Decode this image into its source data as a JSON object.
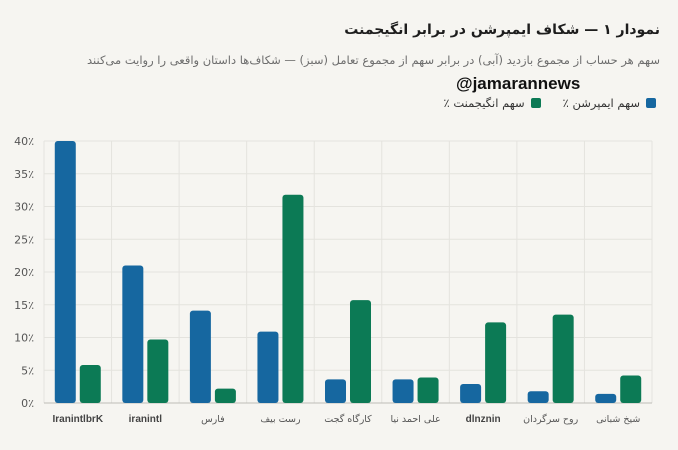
{
  "header": {
    "title": "نمودار ۱ — شکاف ایمپرشن در برابر انگیجمنت",
    "subtitle": "سهم هر حساب از مجموع بازدید (آبی) در برابر سهم از مجموع تعامل (سبز) — شکاف‌ها داستان واقعی را روایت می‌کنند",
    "watermark": "@jamarannews"
  },
  "colors": {
    "impression": "#1667a0",
    "engagement": "#0c7a55",
    "grid": "#e4e3de",
    "axis": "#bdbdb8"
  },
  "chart_data": {
    "type": "bar",
    "categories": [
      "IranintlbrK",
      "iranintl",
      "فارس",
      "رست بیف",
      "کارگاه گجت",
      "علی احمد نیا",
      "dlnznin",
      "روح سرگردان",
      "شیخ شبانی"
    ],
    "series": [
      {
        "name": "سهم ایمپرشن ٪",
        "values": [
          40,
          21,
          14.1,
          10.9,
          3.6,
          3.6,
          2.9,
          1.8,
          1.4
        ]
      },
      {
        "name": "سهم انگیجمنت ٪",
        "values": [
          5.8,
          9.7,
          2.2,
          31.8,
          15.7,
          3.9,
          12.3,
          13.5,
          4.2
        ]
      }
    ],
    "ylim": [
      0,
      40
    ],
    "yticks": [
      "0٪",
      "5٪",
      "10٪",
      "15٪",
      "20٪",
      "25٪",
      "30٪",
      "35٪",
      "40٪"
    ],
    "ytick_values": [
      0,
      5,
      10,
      15,
      20,
      25,
      30,
      35,
      40
    ],
    "grid": true,
    "legend_position": "top-right"
  }
}
